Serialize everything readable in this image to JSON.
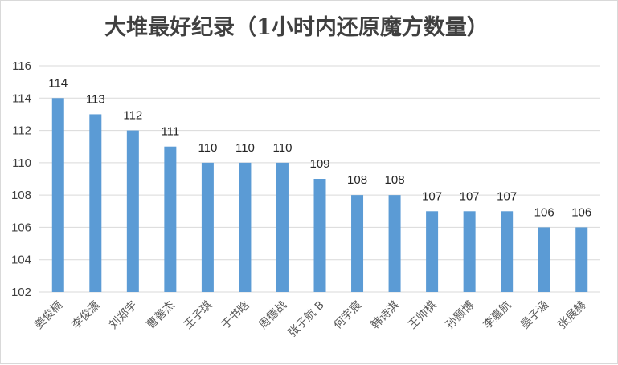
{
  "chart_data": {
    "type": "bar",
    "title": "大堆最好纪录（1小时内还原魔方数量）",
    "xlabel": "",
    "ylabel": "",
    "categories": [
      "姜俊楠",
      "李俊潇",
      "刘郑宇",
      "曹善杰",
      "王子琪",
      "于书晗",
      "周德战",
      "张子航 B",
      "何宇宸",
      "韩诗淇",
      "王帅棋",
      "孙颢博",
      "李嘉航",
      "晏子涵",
      "张展赫"
    ],
    "values": [
      114,
      113,
      112,
      111,
      110,
      110,
      110,
      109,
      108,
      108,
      107,
      107,
      107,
      106,
      106
    ],
    "ylim": [
      102,
      116
    ],
    "yticks": [
      "102",
      "104",
      "106",
      "108",
      "110",
      "112",
      "114",
      "116"
    ],
    "grid": true,
    "legend": "none",
    "colors": {
      "bar": "#5b9bd5",
      "grid": "#d9d9d9"
    }
  }
}
